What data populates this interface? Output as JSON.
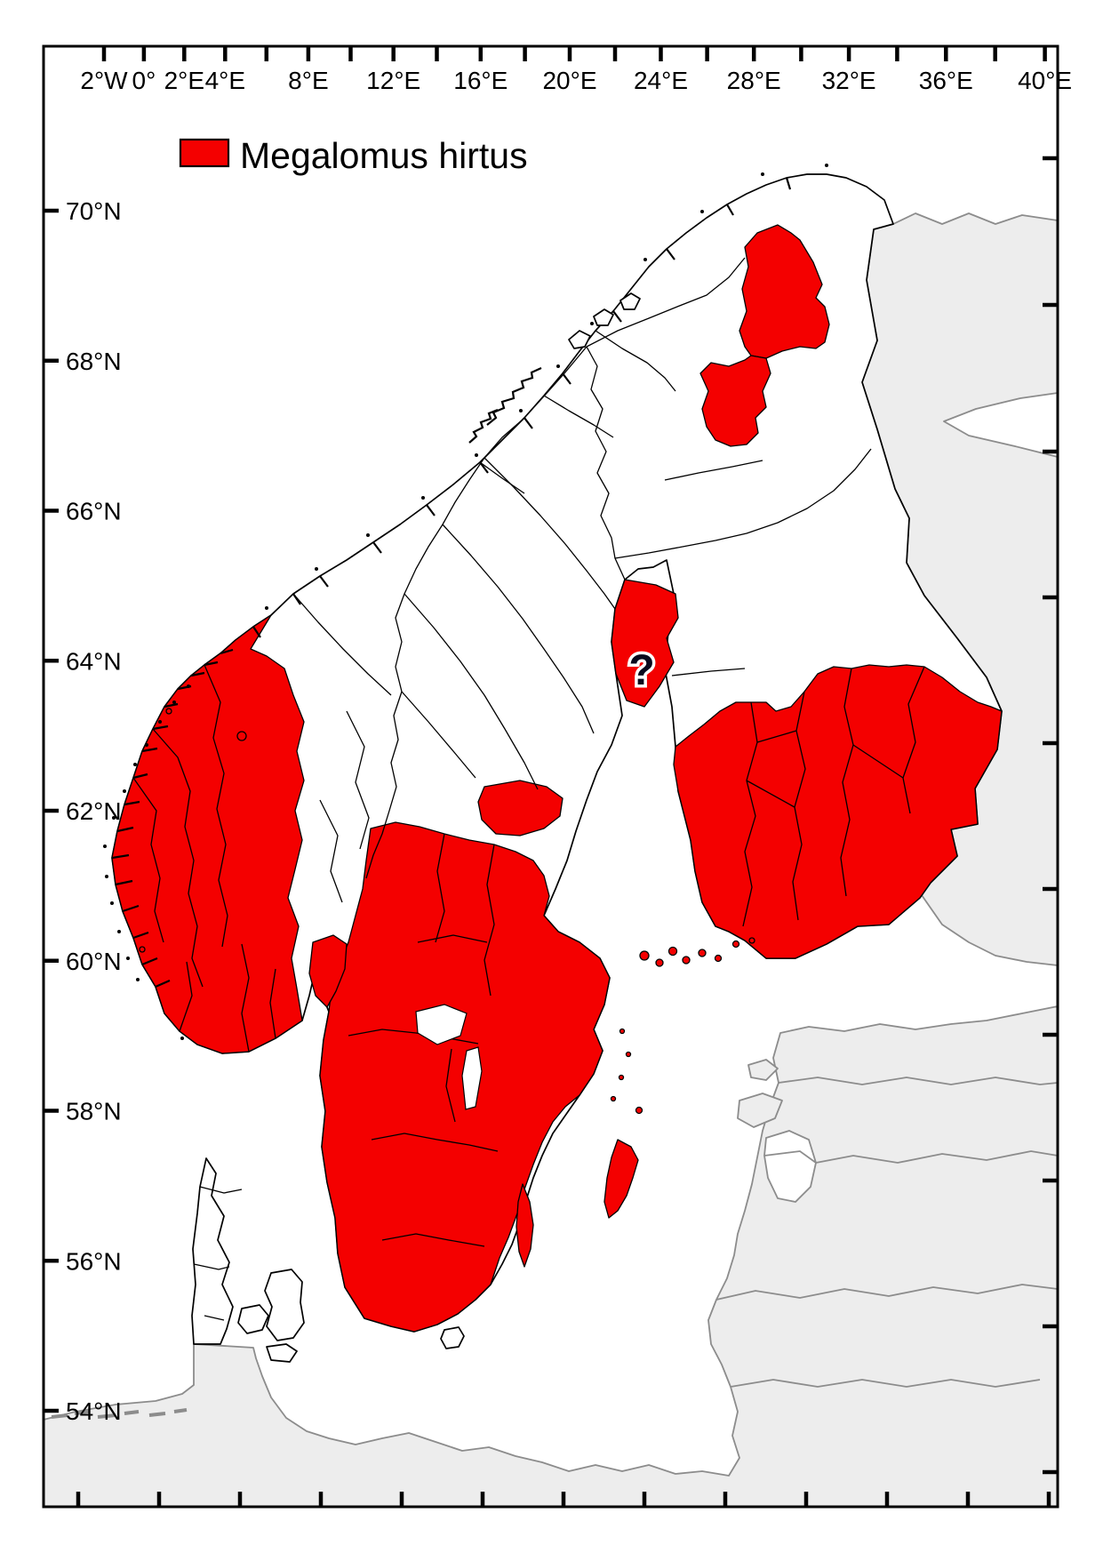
{
  "legend": {
    "label": "Megalomus hirtus",
    "swatch_color": "#F40000"
  },
  "axes": {
    "top_labels": [
      "2°W",
      "0°",
      "2°E",
      "4°E",
      "8°E",
      "12°E",
      "16°E",
      "20°E",
      "24°E",
      "28°E",
      "32°E",
      "36°E",
      "40°E"
    ],
    "left_labels": [
      "70°N",
      "68°N",
      "66°N",
      "64°N",
      "62°N",
      "60°N",
      "58°N",
      "56°N",
      "54°N"
    ]
  },
  "marker": {
    "uncertain_record": "?"
  },
  "colors": {
    "occurrence_red": "#F40000",
    "focal_land_white": "#FFFFFF",
    "background_land_gray": "#EDEDED",
    "background_border_gray": "#8C8C8C",
    "border_black": "#000000"
  }
}
